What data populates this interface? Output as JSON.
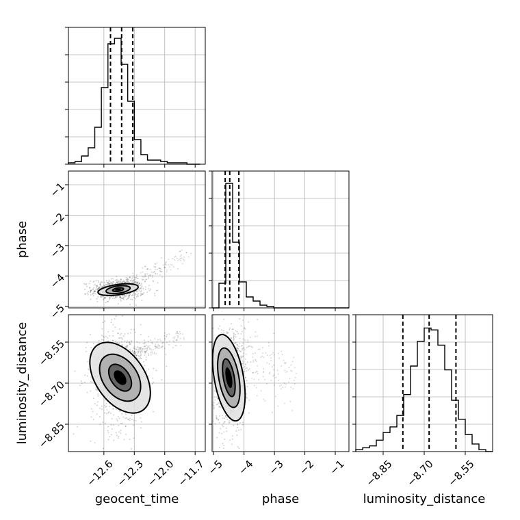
{
  "chart_data": {
    "type": "corner",
    "parameters": [
      "geocent_time",
      "phase",
      "luminosity_distance"
    ],
    "axes": {
      "geocent_time": {
        "label": "geocent_time",
        "range": [
          -12.95,
          -11.6
        ],
        "ticks": [
          -12.6,
          -12.3,
          -12.0,
          -11.7
        ],
        "tick_labels": [
          "−12.6",
          "−12.3",
          "−12.0",
          "−11.7"
        ]
      },
      "phase": {
        "label": "phase",
        "range": [
          -5.05,
          -0.55
        ],
        "ticks": [
          -5,
          -4,
          -3,
          -2,
          -1
        ],
        "tick_labels": [
          "−5",
          "−4",
          "−3",
          "−2",
          "−1"
        ]
      },
      "luminosity_distance": {
        "label": "luminosity_distance",
        "range": [
          -8.95,
          -8.45
        ],
        "ticks": [
          -8.85,
          -8.7,
          -8.55
        ],
        "tick_labels": [
          "−8.85",
          "−8.70",
          "−8.55"
        ]
      }
    },
    "histograms": [
      {
        "param": "geocent_time",
        "quantiles": [
          -12.535,
          -12.425,
          -12.315
        ],
        "bin_edges": [
          -12.95,
          -12.885,
          -12.82,
          -12.755,
          -12.69,
          -12.625,
          -12.56,
          -12.495,
          -12.43,
          -12.365,
          -12.3,
          -12.235,
          -12.17,
          -12.105,
          -12.04,
          -11.975,
          -11.91,
          -11.845,
          -11.78,
          -11.715,
          -11.65
        ],
        "values": [
          1,
          2,
          6,
          12,
          27,
          56,
          88,
          92,
          73,
          46,
          18,
          7,
          3,
          3,
          2,
          1,
          1,
          1,
          0,
          0
        ],
        "ymax": 100
      },
      {
        "param": "phase",
        "quantiles": [
          -4.62,
          -4.47,
          -4.17
        ],
        "bin_edges": [
          -5.05,
          -4.825,
          -4.6,
          -4.375,
          -4.15,
          -3.925,
          -3.7,
          -3.475,
          -3.25,
          -3.025,
          -2.8,
          -2.575,
          -2.35,
          -2.125,
          -1.9,
          -1.675,
          -1.45,
          -1.225,
          -1.0,
          -0.775,
          -0.55
        ],
        "values": [
          0,
          18,
          91,
          48,
          19,
          8,
          5,
          2,
          1,
          0,
          0,
          0,
          0,
          0,
          0,
          0,
          0,
          0,
          0,
          0
        ],
        "ymax": 100
      },
      {
        "param": "luminosity_distance",
        "quantiles": [
          -8.778,
          -8.682,
          -8.584
        ],
        "bin_edges": [
          -8.95,
          -8.925,
          -8.9,
          -8.875,
          -8.85,
          -8.825,
          -8.8,
          -8.775,
          -8.75,
          -8.725,
          -8.7,
          -8.675,
          -8.65,
          -8.625,
          -8.6,
          -8.575,
          -8.55,
          -8.525,
          -8.5,
          -8.475,
          -8.45
        ],
        "values": [
          1,
          2,
          3,
          6,
          10,
          13,
          19,
          30,
          45,
          58,
          65,
          64,
          56,
          43,
          27,
          17,
          9,
          4,
          1,
          0
        ],
        "ymax": 72
      }
    ],
    "panels_2d": [
      {
        "x": "geocent_time",
        "y": "phase",
        "mean": [
          -12.46,
          -4.45
        ],
        "sd": [
          0.1,
          0.13
        ],
        "tail": {
          "from": [
            -12.4,
            -4.3
          ],
          "to": [
            -11.75,
            -3.3
          ],
          "spread": 0.25
        },
        "contours": [
          [
            0.055,
            0.055
          ],
          [
            0.12,
            0.12
          ],
          [
            0.2,
            0.17
          ]
        ]
      },
      {
        "x": "geocent_time",
        "y": "luminosity_distance",
        "mean": [
          -12.44,
          -8.68
        ],
        "sd": [
          0.11,
          0.075
        ],
        "tail": {
          "from": [
            -12.3,
            -8.6
          ],
          "to": [
            -11.8,
            -8.52
          ],
          "spread": 0.05
        },
        "contours": [
          [
            0.09,
            0.055
          ],
          [
            0.17,
            0.095
          ],
          [
            0.24,
            0.145
          ]
        ]
      },
      {
        "x": "phase",
        "y": "luminosity_distance",
        "mean": [
          -4.5,
          -8.68
        ],
        "sd": [
          0.2,
          0.075
        ],
        "tail": {
          "from": [
            -4.2,
            -8.6
          ],
          "to": [
            -2.3,
            -8.68
          ],
          "spread": 0.2
        },
        "contours": [
          [
            0.18,
            0.07
          ],
          [
            0.33,
            0.11
          ],
          [
            0.48,
            0.16
          ]
        ]
      }
    ],
    "grid": true,
    "legend": "none"
  }
}
